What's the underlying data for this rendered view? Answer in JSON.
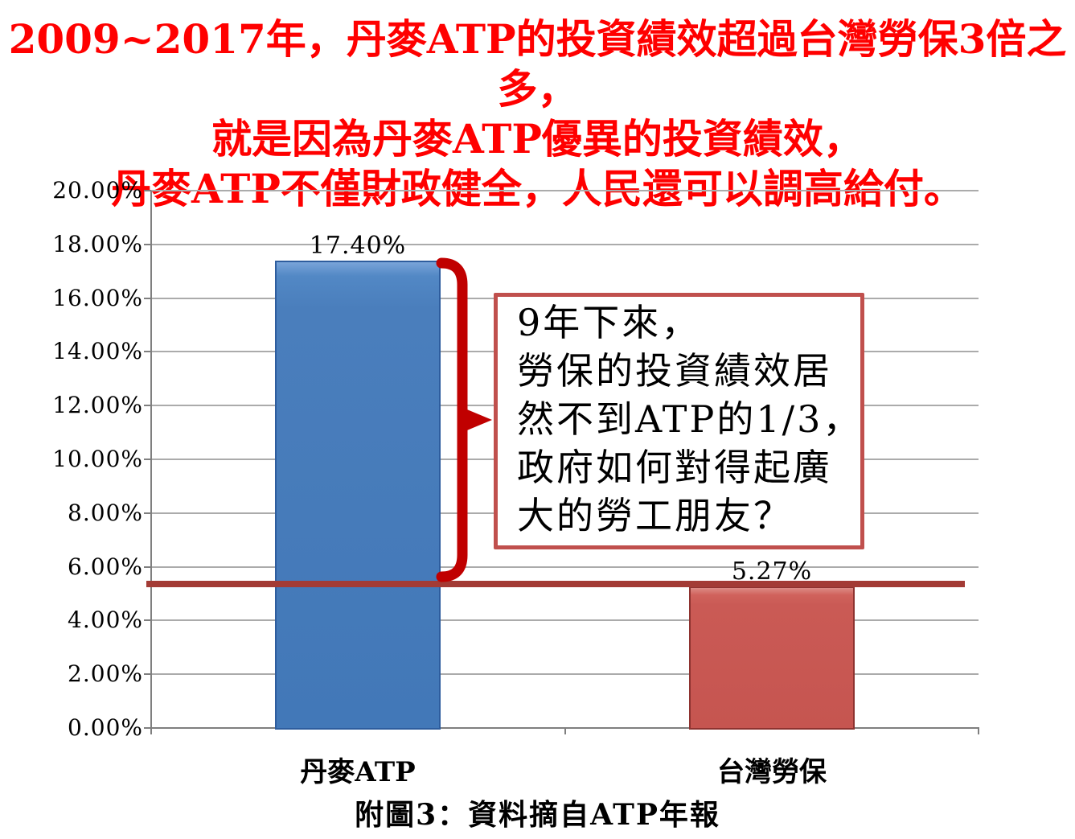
{
  "title": {
    "color": "#FF0000",
    "lines": [
      "2009~2017年，丹麥ATP的投資績效超過台灣勞保3倍之多，",
      "就是因為丹麥ATP優異的投資績效，",
      "丹麥ATP不僅財政健全，人民還可以調高給付。"
    ]
  },
  "chart_data": {
    "type": "bar",
    "categories": [
      "丹麥ATP",
      "台灣勞保"
    ],
    "values": [
      17.4,
      5.27
    ],
    "value_labels": [
      "17.40%",
      "5.27%"
    ],
    "title": "",
    "xlabel": "",
    "ylabel": "",
    "ylim": [
      0,
      20
    ],
    "ytick_step": 2,
    "ytick_labels": [
      "0.00%",
      "2.00%",
      "4.00%",
      "6.00%",
      "8.00%",
      "10.00%",
      "12.00%",
      "14.00%",
      "16.00%",
      "18.00%",
      "20.00%"
    ],
    "grid": true,
    "legend_position": "none",
    "bar_colors": [
      "#4A7EBC",
      "#CA5A55"
    ],
    "reference_line": {
      "value": 5.27,
      "color": "#A33B35"
    }
  },
  "annotation_box": {
    "border_color": "#C0504D",
    "lines": [
      "9年下來，",
      "勞保的投資績效居",
      "然不到ATP的1/3，",
      "政府如何對得起廣",
      "大的勞工朋友？"
    ]
  },
  "brace": {
    "color": "#C00000"
  },
  "caption": "附圖3：資料摘自ATP年報"
}
